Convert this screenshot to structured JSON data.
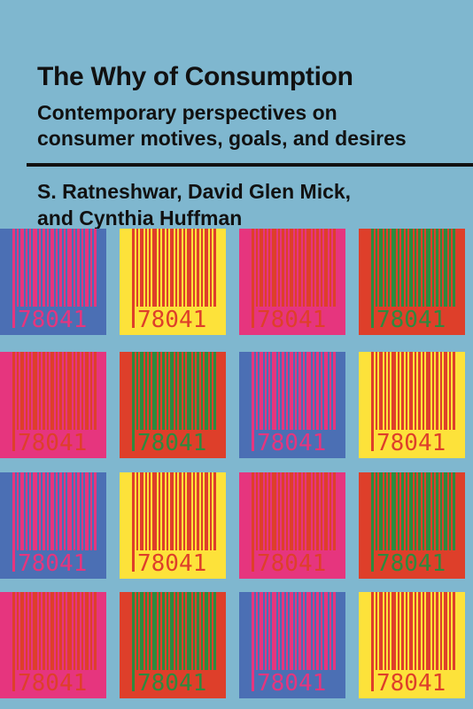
{
  "cover": {
    "title": "The Why of Consumption",
    "subtitle_line1": "Contemporary perspectives on",
    "subtitle_line2": "consumer motives, goals, and desires",
    "authors_line1": "S. Ratneshwar, David Glen Mick,",
    "authors_line2": "and Cynthia Huffman"
  },
  "colors": {
    "background": "#7fb7cf",
    "blue": "#4b6fb4",
    "yellow": "#fde23a",
    "magenta": "#e6357e",
    "red": "#de3f2a",
    "orange": "#ee6a2f",
    "green": "#2e8a3e"
  },
  "barcode_text": "78041",
  "tiles": [
    {
      "bg": "#4b6fb4",
      "fg": "#e6357e"
    },
    {
      "bg": "#fde23a",
      "fg": "#de3f2a"
    },
    {
      "bg": "#e6357e",
      "fg": "#de3f2a"
    },
    {
      "bg": "#de3f2a",
      "fg": "#2e8a3e"
    },
    {
      "bg": "#e6357e",
      "fg": "#de3f2a"
    },
    {
      "bg": "#de3f2a",
      "fg": "#2e8a3e"
    },
    {
      "bg": "#4b6fb4",
      "fg": "#e6357e"
    },
    {
      "bg": "#fde23a",
      "fg": "#de3f2a"
    },
    {
      "bg": "#4b6fb4",
      "fg": "#e6357e"
    },
    {
      "bg": "#fde23a",
      "fg": "#de3f2a"
    },
    {
      "bg": "#e6357e",
      "fg": "#de3f2a"
    },
    {
      "bg": "#de3f2a",
      "fg": "#2e8a3e"
    },
    {
      "bg": "#e6357e",
      "fg": "#de3f2a"
    },
    {
      "bg": "#de3f2a",
      "fg": "#2e8a3e"
    },
    {
      "bg": "#4b6fb4",
      "fg": "#e6357e"
    },
    {
      "bg": "#fde23a",
      "fg": "#de3f2a"
    }
  ]
}
